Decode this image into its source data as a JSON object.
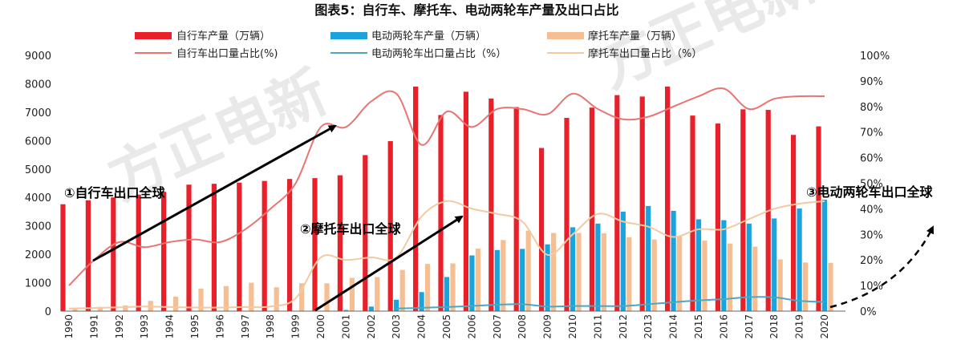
{
  "chart_data": {
    "type": "bar",
    "title": "图表5：自行车、摩托车、电动两轮车产量及出口占比",
    "categories": [
      "1990",
      "1991",
      "1992",
      "1993",
      "1994",
      "1995",
      "1996",
      "1997",
      "1998",
      "1999",
      "2000",
      "2001",
      "2002",
      "2003",
      "2004",
      "2005",
      "2006",
      "2007",
      "2008",
      "2009",
      "2010",
      "2011",
      "2012",
      "2013",
      "2014",
      "2015",
      "2016",
      "2017",
      "2018",
      "2019",
      "2020"
    ],
    "ylim_left": [
      0,
      9000
    ],
    "yticks_left": [
      0,
      1000,
      2000,
      3000,
      4000,
      5000,
      6000,
      7000,
      8000,
      9000
    ],
    "ylim_right": [
      0,
      100
    ],
    "yticks_right": [
      "0%",
      "10%",
      "20%",
      "30%",
      "40%",
      "50%",
      "60%",
      "70%",
      "80%",
      "90%",
      "100%"
    ],
    "grid": false,
    "legend_position": "top",
    "bar_series": [
      {
        "name": "自行车产量（万辆）",
        "color": "#e8202a",
        "values": [
          3760,
          3900,
          4000,
          4100,
          4200,
          4450,
          4480,
          4520,
          4580,
          4650,
          4680,
          4780,
          5490,
          5980,
          7900,
          6900,
          7720,
          7480,
          7180,
          5740,
          6800,
          7160,
          7600,
          7550,
          7900,
          6880,
          6600,
          7100,
          7080,
          6200,
          6500
        ]
      },
      {
        "name": "电动两轮车产量（万辆）",
        "color": "#1aa3dc",
        "values": [
          0,
          0,
          0,
          0,
          0,
          0,
          0,
          0,
          0,
          0,
          0,
          40,
          160,
          400,
          670,
          1200,
          1960,
          2150,
          2190,
          2350,
          2950,
          3080,
          3500,
          3700,
          3530,
          3230,
          3200,
          3080,
          3260,
          3610,
          3920
        ]
      },
      {
        "name": "摩托车产量（万辆）",
        "color": "#f6bf93",
        "values": [
          120,
          150,
          200,
          360,
          510,
          790,
          880,
          1000,
          840,
          980,
          980,
          1170,
          1200,
          1450,
          1660,
          1680,
          2200,
          2500,
          2830,
          2750,
          2750,
          2740,
          2600,
          2520,
          2640,
          2480,
          2380,
          2270,
          1820,
          1710,
          1700
        ]
      }
    ],
    "line_series": [
      {
        "name": "自行车出口量占比(%)",
        "color": "#e87572",
        "values": [
          10,
          20,
          27,
          25,
          27,
          28,
          27,
          32,
          40,
          50,
          72,
          72,
          82,
          85,
          65,
          78,
          72,
          79,
          79,
          77,
          85,
          79,
          75,
          76,
          80,
          84,
          87,
          79,
          83,
          84,
          84
        ]
      },
      {
        "name": "电动两轮车出口量占比（%）",
        "color": "#4aa9c0",
        "values": [
          null,
          null,
          null,
          null,
          null,
          null,
          null,
          null,
          null,
          null,
          null,
          null,
          null,
          1,
          1.3,
          1.6,
          2,
          2.5,
          2.7,
          1.8,
          2,
          2,
          2,
          2.7,
          3.5,
          4.2,
          4.7,
          5.5,
          5.4,
          4,
          3.6
        ]
      },
      {
        "name": "摩托车出口量占比（%）",
        "color": "#f2c9a0",
        "values": [
          1,
          1.2,
          1.5,
          1.8,
          1.6,
          1.4,
          1.4,
          1.6,
          1.8,
          5,
          21,
          20,
          21,
          21,
          37,
          43,
          40,
          38,
          35,
          22,
          30,
          38,
          35,
          33,
          29,
          32,
          32,
          36,
          40,
          42,
          43
        ]
      }
    ],
    "annotations": [
      "①自行车出口全球",
      "②摩托车出口全球",
      "③电动两轮车出口全球"
    ],
    "watermark": "方正电新"
  }
}
